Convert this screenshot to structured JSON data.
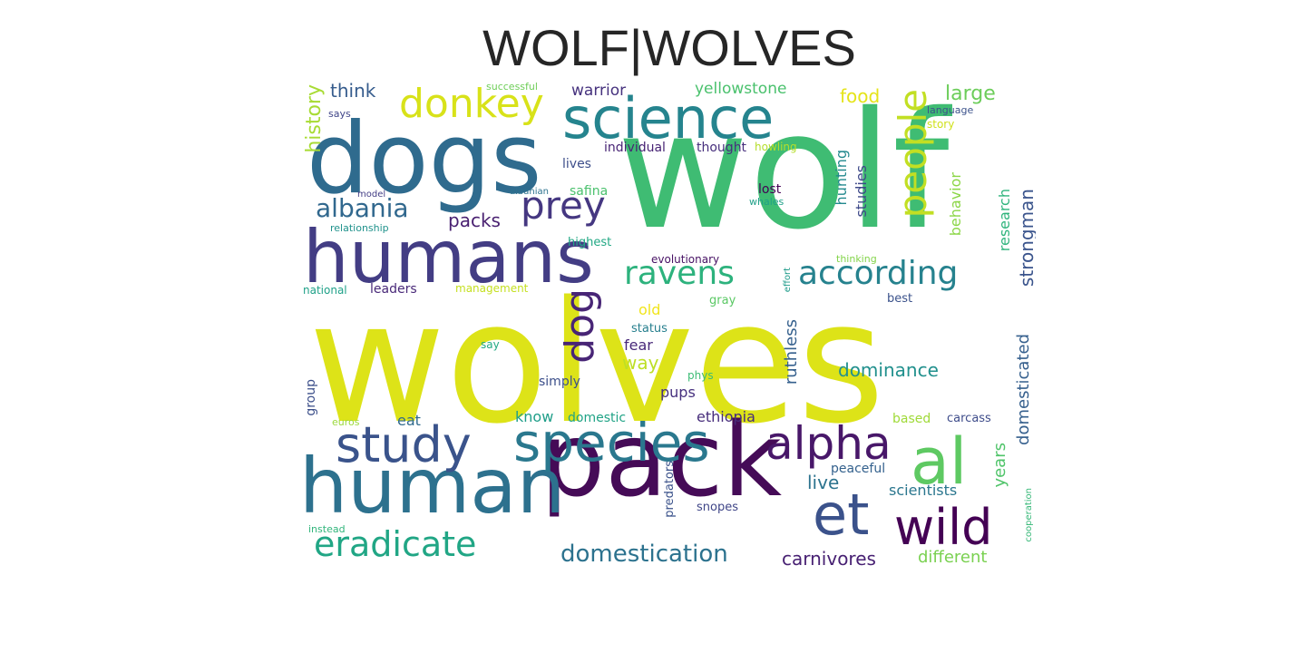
{
  "title": "WOLF|WOLVES",
  "words": [
    {
      "text": "wolves",
      "color": "#dde318"
    },
    {
      "text": "wolf",
      "color": "#3fbc73"
    },
    {
      "text": "pack",
      "color": "#450b57"
    },
    {
      "text": "dogs",
      "color": "#2f6b8e"
    },
    {
      "text": "humans",
      "color": "#433d84"
    },
    {
      "text": "human",
      "color": "#2d718e"
    },
    {
      "text": "science",
      "color": "#25848e"
    },
    {
      "text": "species",
      "color": "#2a788e"
    },
    {
      "text": "study",
      "color": "#3a538b"
    },
    {
      "text": "alpha",
      "color": "#481769"
    },
    {
      "text": "et",
      "color": "#3b528b"
    },
    {
      "text": "al",
      "color": "#5ec962"
    },
    {
      "text": "wild",
      "color": "#440154"
    },
    {
      "text": "donkey",
      "color": "#d8e219"
    },
    {
      "text": "prey",
      "color": "#453781"
    },
    {
      "text": "people",
      "color": "#c2df23"
    },
    {
      "text": "ravens",
      "color": "#2db27d"
    },
    {
      "text": "according",
      "color": "#26828e"
    },
    {
      "text": "dog",
      "color": "#482576"
    },
    {
      "text": "eradicate",
      "color": "#21a685"
    },
    {
      "text": "domestication",
      "color": "#2c728e"
    },
    {
      "text": "albania",
      "color": "#31688e"
    },
    {
      "text": "packs",
      "color": "#481f70"
    },
    {
      "text": "history",
      "color": "#a8db34"
    },
    {
      "text": "think",
      "color": "#365c8d"
    },
    {
      "text": "warrior",
      "color": "#46327e"
    },
    {
      "text": "yellowstone",
      "color": "#4ac16d"
    },
    {
      "text": "food",
      "color": "#e5e419"
    },
    {
      "text": "large",
      "color": "#6ccd5a"
    },
    {
      "text": "hunting",
      "color": "#23898e"
    },
    {
      "text": "studies",
      "color": "#3e4989"
    },
    {
      "text": "behavior",
      "color": "#8bd646"
    },
    {
      "text": "research",
      "color": "#2fb47c"
    },
    {
      "text": "strongman",
      "color": "#3a548c"
    },
    {
      "text": "dominance",
      "color": "#21908d"
    },
    {
      "text": "ruthless",
      "color": "#35608d"
    },
    {
      "text": "domesticated",
      "color": "#355f8d"
    },
    {
      "text": "years",
      "color": "#50c46a"
    },
    {
      "text": "carnivores",
      "color": "#482173"
    },
    {
      "text": "different",
      "color": "#7ad151"
    },
    {
      "text": "scientists",
      "color": "#2a768e"
    },
    {
      "text": "live",
      "color": "#2c738e"
    },
    {
      "text": "way",
      "color": "#bddf26"
    },
    {
      "text": "fear",
      "color": "#482979"
    },
    {
      "text": "pups",
      "color": "#46307e"
    },
    {
      "text": "eat",
      "color": "#306a8e"
    },
    {
      "text": "know",
      "color": "#1f9e89"
    },
    {
      "text": "domestic",
      "color": "#20a386"
    },
    {
      "text": "ethiopia",
      "color": "#472d7b"
    },
    {
      "text": "group",
      "color": "#3c4f8a"
    },
    {
      "text": "based",
      "color": "#a0da39"
    },
    {
      "text": "carcass",
      "color": "#3e4c8a"
    },
    {
      "text": "peaceful",
      "color": "#34618d"
    },
    {
      "text": "snopes",
      "color": "#404688"
    },
    {
      "text": "predators",
      "color": "#3b528b"
    },
    {
      "text": "cooperation",
      "color": "#37b878"
    },
    {
      "text": "instead",
      "color": "#31b57b"
    },
    {
      "text": "euros",
      "color": "#9bd93c"
    },
    {
      "text": "simply",
      "color": "#3c4f8a"
    },
    {
      "text": "phys",
      "color": "#3cbc75"
    },
    {
      "text": "say",
      "color": "#23a983"
    },
    {
      "text": "status",
      "color": "#277f8e"
    },
    {
      "text": "old",
      "color": "#f1e51d"
    },
    {
      "text": "gray",
      "color": "#5ac864"
    },
    {
      "text": "best",
      "color": "#3b528b"
    },
    {
      "text": "effort",
      "color": "#1e9b8a"
    },
    {
      "text": "national",
      "color": "#1fa188"
    },
    {
      "text": "leaders",
      "color": "#482878"
    },
    {
      "text": "management",
      "color": "#c5e021"
    },
    {
      "text": "relationship",
      "color": "#20928c"
    },
    {
      "text": "model",
      "color": "#433e85"
    },
    {
      "text": "says",
      "color": "#404588"
    },
    {
      "text": "successful",
      "color": "#6ece58"
    },
    {
      "text": "individual",
      "color": "#482475"
    },
    {
      "text": "thought",
      "color": "#472f7d"
    },
    {
      "text": "lives",
      "color": "#3d4e8a"
    },
    {
      "text": "albanian",
      "color": "#2c728e"
    },
    {
      "text": "safina",
      "color": "#4ac16d"
    },
    {
      "text": "highest",
      "color": "#22a884"
    },
    {
      "text": "evolutionary",
      "color": "#471164"
    },
    {
      "text": "thinking",
      "color": "#84d44b"
    },
    {
      "text": "lost",
      "color": "#440154"
    },
    {
      "text": "whales",
      "color": "#1fa088"
    },
    {
      "text": "howling",
      "color": "#b5de2b"
    },
    {
      "text": "story",
      "color": "#d0e11c"
    },
    {
      "text": "language",
      "color": "#3b528b"
    }
  ]
}
